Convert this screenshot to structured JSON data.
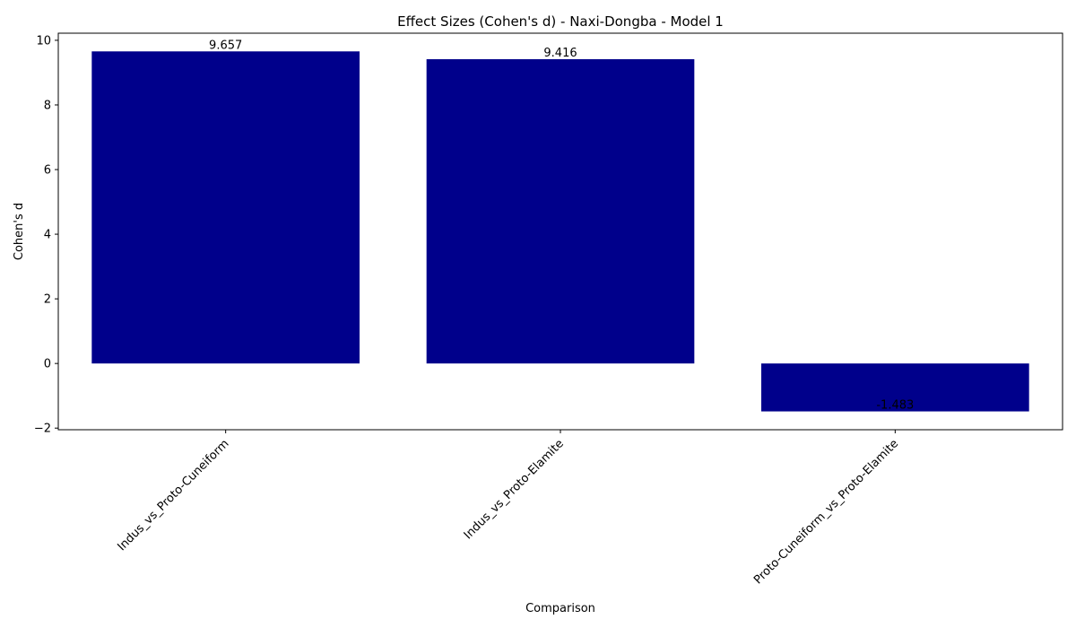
{
  "chart_data": {
    "type": "bar",
    "title": "Effect Sizes (Cohen's d) - Naxi-Dongba - Model 1",
    "xlabel": "Comparison",
    "ylabel": "Cohen's d",
    "categories": [
      "Indus_vs_Proto-Cuneiform",
      "Indus_vs_Proto-Elamite",
      "Proto-Cuneiform_vs_Proto-Elamite"
    ],
    "values": [
      9.657,
      9.416,
      -1.483
    ],
    "data_labels": [
      "9.657",
      "9.416",
      "-1.483"
    ],
    "ylim": [
      -2.05,
      10.22
    ],
    "yticks": [
      -2,
      0,
      2,
      4,
      6,
      8,
      10
    ],
    "grid": false,
    "bar_color": "#00008B"
  }
}
